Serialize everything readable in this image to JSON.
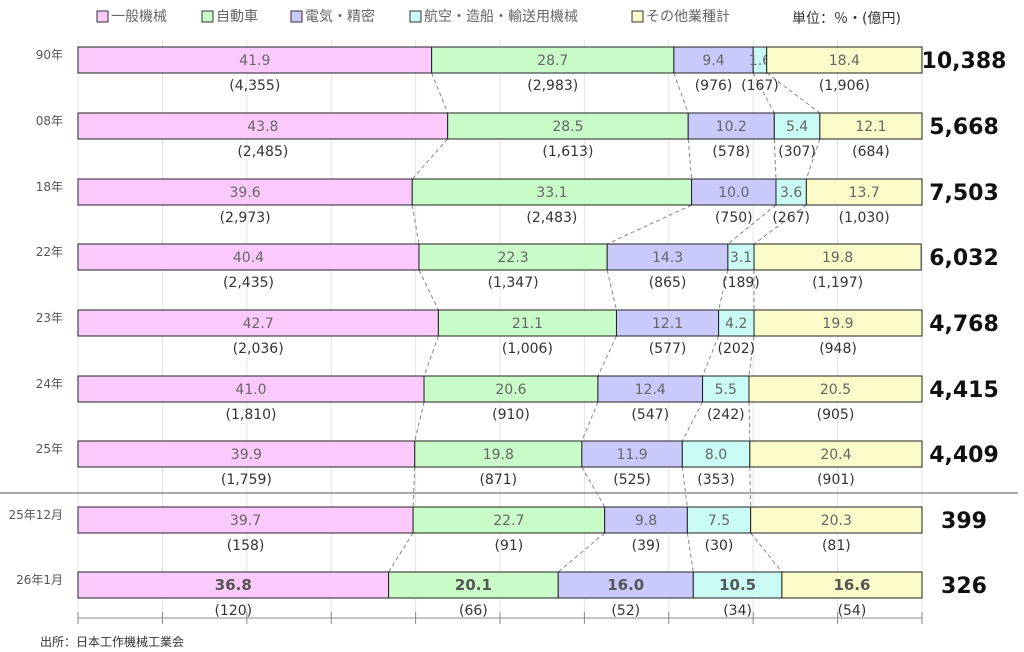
{
  "chart_data": {
    "type": "bar",
    "subtype": "100% stacked horizontal",
    "unit": "単位：％・(億円)",
    "source": "出所：日本工作機械工業会",
    "colors": [
      "#fbc9fb",
      "#c9fbc9",
      "#c9c9fb",
      "#c9fbf4",
      "#fbfbc9"
    ],
    "series": [
      {
        "name": "一般機械",
        "values": [
          41.9,
          43.8,
          39.6,
          40.4,
          42.7,
          41.0,
          39.9,
          39.7,
          36.8
        ],
        "amounts": [
          "(4,355)",
          "(2,485)",
          "(2,973)",
          "(2,435)",
          "(2,036)",
          "(1,810)",
          "(1,759)",
          "(158)",
          "(120)"
        ]
      },
      {
        "name": "自動車",
        "values": [
          28.7,
          28.5,
          33.1,
          22.3,
          21.1,
          20.6,
          19.8,
          22.7,
          20.1
        ],
        "amounts": [
          "(2,983)",
          "(1,613)",
          "(2,483)",
          "(1,347)",
          "(1,006)",
          "(910)",
          "(871)",
          "(91)",
          "(66)"
        ]
      },
      {
        "name": "電気・精密",
        "values": [
          9.4,
          10.2,
          10.0,
          14.3,
          12.1,
          12.4,
          11.9,
          9.8,
          16.0
        ],
        "amounts": [
          "(976)",
          "(578)",
          "(750)",
          "(865)",
          "(577)",
          "(547)",
          "(525)",
          "(39)",
          "(52)"
        ]
      },
      {
        "name": "航空・造船・輸送用機械",
        "values": [
          1.6,
          5.4,
          3.6,
          3.1,
          4.2,
          5.5,
          8.0,
          7.5,
          10.5
        ],
        "amounts": [
          "(167)",
          "(307)",
          "(267)",
          "(189)",
          "(202)",
          "(242)",
          "(353)",
          "(30)",
          "(34)"
        ]
      },
      {
        "name": "その他業種計",
        "values": [
          18.4,
          12.1,
          13.7,
          19.8,
          19.9,
          20.5,
          20.4,
          20.3,
          16.6
        ],
        "amounts": [
          "(1,906)",
          "(684)",
          "(1,030)",
          "(1,197)",
          "(948)",
          "(905)",
          "(901)",
          "(81)",
          "(54)"
        ]
      }
    ],
    "rows": [
      {
        "label": "90年",
        "total": "10,388"
      },
      {
        "label": "08年",
        "total": "5,668"
      },
      {
        "label": "18年",
        "total": "7,503"
      },
      {
        "label": "22年",
        "total": "6,032"
      },
      {
        "label": "23年",
        "total": "4,768"
      },
      {
        "label": "24年",
        "total": "4,415"
      },
      {
        "label": "25年",
        "total": "4,409"
      },
      {
        "label": "25年12月",
        "total": "399"
      },
      {
        "label": "26年1月",
        "total": "326"
      }
    ]
  }
}
